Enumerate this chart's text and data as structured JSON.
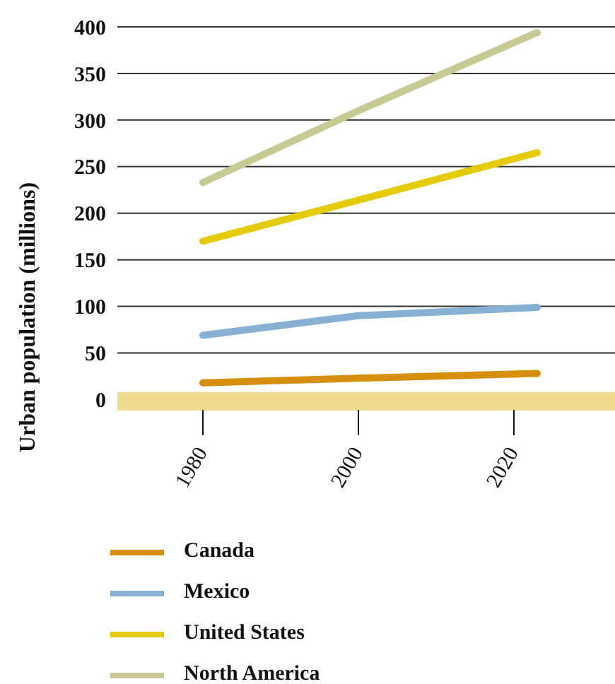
{
  "chart_data": {
    "type": "line",
    "ylabel": "Urban population (millions)",
    "x": [
      1980,
      2000,
      2023
    ],
    "series": [
      {
        "name": "Canada",
        "color": "#d68f0a",
        "values": [
          18,
          23,
          28
        ]
      },
      {
        "name": "Mexico",
        "color": "#87b0d3",
        "values": [
          69,
          90,
          99
        ]
      },
      {
        "name": "United States",
        "color": "#e3cb06",
        "values": [
          170,
          214,
          265
        ]
      },
      {
        "name": "North America",
        "color": "#c8ca95",
        "values": [
          233,
          310,
          394
        ]
      }
    ],
    "xlim": [
      1969,
      2033
    ],
    "xticks": [
      1980,
      2000,
      2020
    ],
    "ylim": [
      -11,
      400
    ],
    "yticks": [
      0,
      50,
      100,
      150,
      200,
      250,
      300,
      350,
      400
    ],
    "bands": [
      {
        "axis": "y",
        "from": -11,
        "to": 8,
        "color": "#efdd8f"
      }
    ],
    "grid": "y",
    "legend": "bottom",
    "marker": "none",
    "line_style": "solid"
  }
}
